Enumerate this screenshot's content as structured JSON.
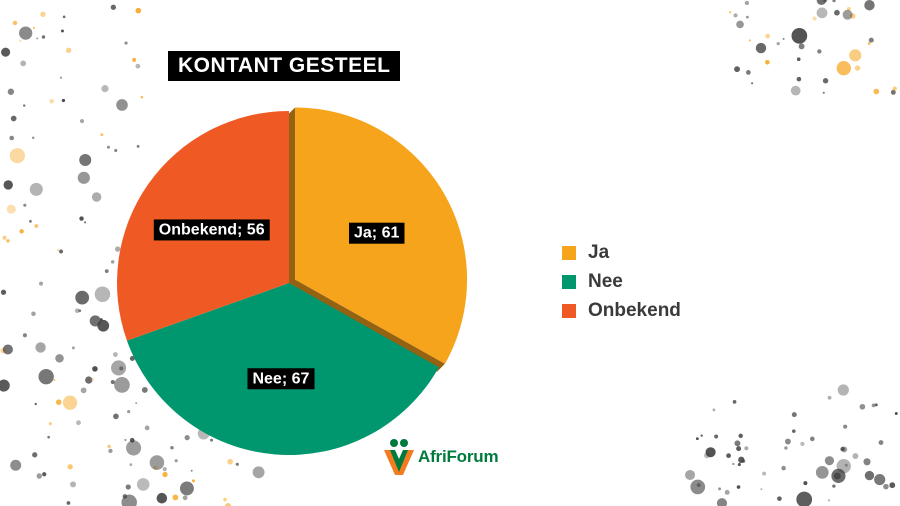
{
  "chart_data": {
    "type": "pie",
    "title": "KONTANT GESTEEL",
    "categories": [
      "Ja",
      "Nee",
      "Onbekend"
    ],
    "values": [
      61,
      67,
      56
    ],
    "data_labels": [
      "Ja; 61",
      "Nee; 67",
      "Onbekend; 56"
    ],
    "colors": [
      "#f7a41d",
      "#00966e",
      "#ef5a24"
    ],
    "exploded_slice": "Ja",
    "legend_position": "right"
  },
  "logo": {
    "text": "AfriForum",
    "colors": [
      "#007a3d",
      "#f47c20"
    ]
  },
  "decoration": {
    "splatter_colors": [
      "#3a3a3a",
      "#f7a41d"
    ]
  }
}
